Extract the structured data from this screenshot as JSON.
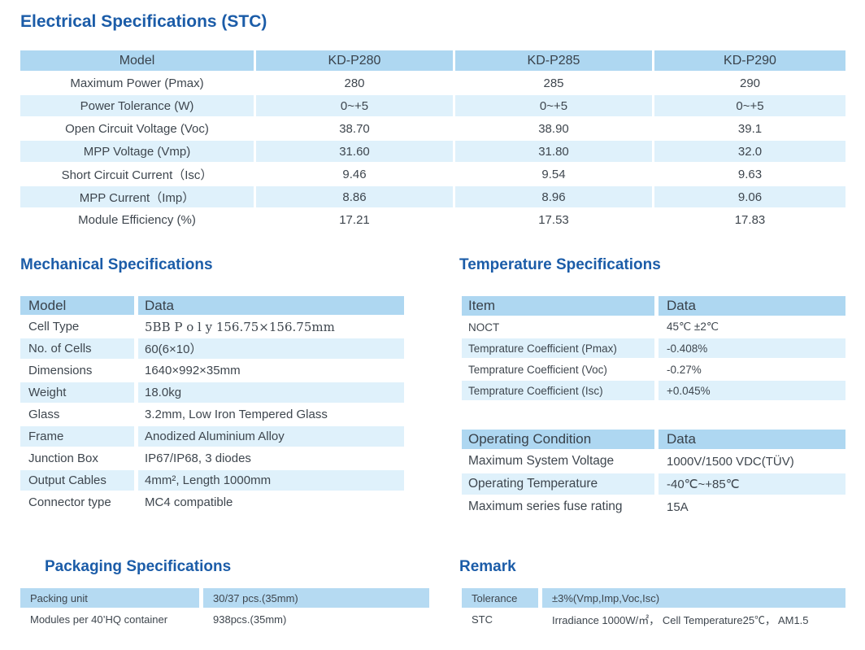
{
  "colors": {
    "title_blue": "#1B5CA8",
    "header_row_blue": "#AED7F1",
    "alt_row_blue": "#DFF1FB",
    "label_row_blue": "#B5DAF2",
    "body_text": "#3E464E"
  },
  "electrical": {
    "title": "Electrical Specifications (STC)",
    "header": [
      "Model",
      "KD-P280",
      "KD-P285",
      "KD-P290"
    ],
    "rows": [
      {
        "label": "Maximum Power (Pmax)",
        "values": [
          "280",
          "285",
          "290"
        ]
      },
      {
        "label": "Power Tolerance (W)",
        "values": [
          "0~+5",
          "0~+5",
          "0~+5"
        ]
      },
      {
        "label": "Open Circuit Voltage (Voc)",
        "values": [
          "38.70",
          "38.90",
          "39.1"
        ]
      },
      {
        "label": "MPP Voltage (Vmp)",
        "values": [
          "31.60",
          "31.80",
          "32.0"
        ]
      },
      {
        "label": "Short Circuit Current（Isc）",
        "values": [
          "9.46",
          "9.54",
          "9.63"
        ]
      },
      {
        "label": "MPP Current（Imp）",
        "values": [
          "8.86",
          "8.96",
          "9.06"
        ]
      },
      {
        "label": "Module Efficiency (%)",
        "values": [
          "17.21",
          "17.53",
          "17.83"
        ]
      }
    ]
  },
  "mechanical": {
    "title": "Mechanical Specifications",
    "header": [
      "Model",
      "Data"
    ],
    "rows": [
      {
        "label": "Cell Type",
        "value": "5BB P o l y 156.75×156.75mm"
      },
      {
        "label": "No. of Cells",
        "value": "60(6×10）"
      },
      {
        "label": "Dimensions",
        "value": "1640×992×35mm"
      },
      {
        "label": "Weight",
        "value": "18.0kg"
      },
      {
        "label": "Glass",
        "value": "3.2mm, Low Iron Tempered Glass"
      },
      {
        "label": "Frame",
        "value": "Anodized Aluminium Alloy"
      },
      {
        "label": "Junction Box",
        "value": "IP67/IP68, 3 diodes"
      },
      {
        "label": "Output Cables",
        "value": "4mm², Length 1000mm"
      },
      {
        "label": "Connector type",
        "value": "MC4 compatible"
      }
    ]
  },
  "temperature": {
    "title": "Temperature Specifications",
    "header": [
      "Item",
      "Data"
    ],
    "rows": [
      {
        "label": "NOCT",
        "value": "45℃ ±2℃"
      },
      {
        "label": "Temprature Coefficient (Pmax)",
        "value": "-0.408%"
      },
      {
        "label": "Temprature Coefficient (Voc)",
        "value": "-0.27%"
      },
      {
        "label": "Temprature Coefficient (Isc)",
        "value": "+0.045%"
      }
    ]
  },
  "operating": {
    "header": [
      "Operating Condition",
      "Data"
    ],
    "rows": [
      {
        "label": "Maximum System Voltage",
        "value": "1000V/1500 VDC(TÜV)"
      },
      {
        "label": "Operating Temperature",
        "value": "-40℃~+85℃"
      },
      {
        "label": "Maximum series fuse rating",
        "value": "15A"
      }
    ]
  },
  "packaging": {
    "title": "Packaging Specifications",
    "rows": [
      {
        "label": "Packing unit",
        "value": "30/37 pcs.(35mm)"
      },
      {
        "label": "Modules per 40’HQ container",
        "value": "938pcs.(35mm)"
      }
    ]
  },
  "remark": {
    "title": "Remark",
    "rows": [
      {
        "label": "Tolerance",
        "value": "±3%(Vmp,Imp,Voc,Isc)"
      },
      {
        "label": "STC",
        "value": "Irradiance 1000W/㎡， Cell Temperature25℃， AM1.5"
      }
    ]
  }
}
